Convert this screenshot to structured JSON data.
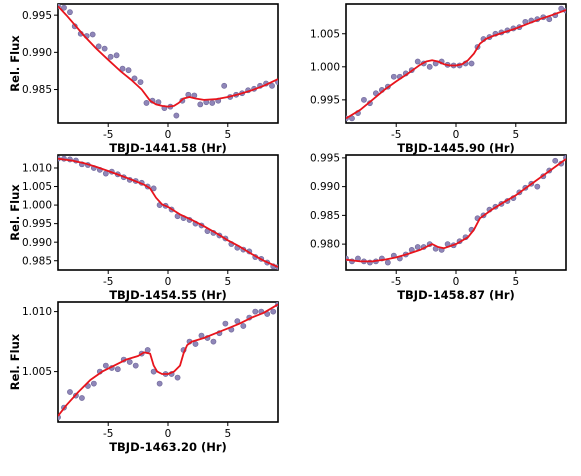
{
  "chart_data": [
    {
      "type": "scatter",
      "xlabel": "TBJD-1441.58 (Hr)",
      "ylabel": "Rel. Flux",
      "xlim": [
        -9.2,
        9.2
      ],
      "ylim": [
        0.9805,
        0.9965
      ],
      "xticks": [
        -5,
        0,
        5
      ],
      "yticks": [
        0.985,
        0.99,
        0.995
      ],
      "ytick_labels": [
        "0.985",
        "0.990",
        "0.995"
      ],
      "series": [
        {
          "kind": "points",
          "color": "#8f86b8",
          "x": [
            -9.2,
            -8.7,
            -8.2,
            -7.8,
            -7.3,
            -6.8,
            -6.3,
            -5.8,
            -5.3,
            -4.8,
            -4.3,
            -3.8,
            -3.3,
            -2.8,
            -2.3,
            -1.8,
            -1.3,
            -0.8,
            -0.3,
            0.2,
            0.7,
            1.2,
            1.7,
            2.2,
            2.7,
            3.2,
            3.7,
            4.2,
            4.7,
            5.2,
            5.7,
            6.2,
            6.7,
            7.2,
            7.7,
            8.2,
            8.7,
            9.2
          ],
          "y": [
            0.9962,
            0.996,
            0.9954,
            0.9935,
            0.9925,
            0.9922,
            0.9924,
            0.9908,
            0.9905,
            0.9894,
            0.9896,
            0.9878,
            0.9876,
            0.9865,
            0.986,
            0.9832,
            0.9835,
            0.9833,
            0.9825,
            0.9827,
            0.9815,
            0.9835,
            0.9843,
            0.9842,
            0.983,
            0.9833,
            0.9832,
            0.9835,
            0.9855,
            0.984,
            0.9843,
            0.9845,
            0.9849,
            0.9851,
            0.9855,
            0.9858,
            0.9855,
            0.986
          ]
        },
        {
          "kind": "line",
          "color": "#e8141c",
          "x": [
            -9.2,
            -8.5,
            -7.8,
            -7.0,
            -6.0,
            -5.0,
            -4.0,
            -3.0,
            -2.2,
            -1.5,
            -1.0,
            -0.5,
            0.0,
            0.5,
            0.9,
            1.3,
            1.8,
            2.3,
            3.0,
            4.0,
            5.0,
            6.0,
            7.0,
            8.0,
            9.2
          ],
          "y": [
            0.9962,
            0.995,
            0.9937,
            0.9922,
            0.9905,
            0.989,
            0.9875,
            0.9862,
            0.985,
            0.9835,
            0.983,
            0.9828,
            0.9827,
            0.9828,
            0.9832,
            0.9838,
            0.984,
            0.9838,
            0.9836,
            0.9837,
            0.984,
            0.9844,
            0.9849,
            0.9855,
            0.9864
          ]
        }
      ]
    },
    {
      "type": "scatter",
      "xlabel": "TBJD-1445.90 (Hr)",
      "ylabel": "",
      "xlim": [
        -9.2,
        9.2
      ],
      "ylim": [
        0.9915,
        1.0095
      ],
      "xticks": [
        -5,
        0,
        5
      ],
      "yticks": [
        0.995,
        1.0,
        1.005
      ],
      "ytick_labels": [
        "0.995",
        "1.000",
        "1.005"
      ],
      "series": [
        {
          "kind": "points",
          "color": "#8f86b8",
          "x": [
            -9.2,
            -8.7,
            -8.2,
            -7.7,
            -7.2,
            -6.7,
            -6.2,
            -5.7,
            -5.2,
            -4.7,
            -4.2,
            -3.7,
            -3.2,
            -2.7,
            -2.2,
            -1.7,
            -1.2,
            -0.7,
            -0.2,
            0.3,
            0.8,
            1.3,
            1.8,
            2.3,
            2.8,
            3.3,
            3.8,
            4.3,
            4.8,
            5.3,
            5.8,
            6.3,
            6.8,
            7.3,
            7.8,
            8.3,
            8.8,
            9.2
          ],
          "y": [
            0.9922,
            0.9922,
            0.993,
            0.995,
            0.9945,
            0.996,
            0.9965,
            0.997,
            0.9985,
            0.9985,
            0.999,
            0.9995,
            1.0008,
            1.0005,
            1.0,
            1.0005,
            1.0008,
            1.0003,
            1.0002,
            1.0002,
            1.0005,
            1.0005,
            1.003,
            1.0042,
            1.0045,
            1.005,
            1.0052,
            1.0055,
            1.0058,
            1.006,
            1.0068,
            1.007,
            1.0072,
            1.0075,
            1.0072,
            1.0078,
            1.0088,
            1.0085
          ]
        },
        {
          "kind": "line",
          "color": "#e8141c",
          "x": [
            -9.2,
            -8.0,
            -7.0,
            -6.0,
            -5.0,
            -4.0,
            -3.0,
            -2.5,
            -2.0,
            -1.5,
            -1.0,
            -0.5,
            0.0,
            0.5,
            1.0,
            1.5,
            2.0,
            2.5,
            3.0,
            4.0,
            5.0,
            6.0,
            7.0,
            8.0,
            9.2
          ],
          "y": [
            0.9922,
            0.9935,
            0.995,
            0.9965,
            0.9978,
            0.999,
            1.0003,
            1.0008,
            1.001,
            1.0008,
            1.0004,
            1.0002,
            1.0002,
            1.0004,
            1.001,
            1.002,
            1.0035,
            1.0042,
            1.0046,
            1.0052,
            1.0058,
            1.0065,
            1.0072,
            1.0078,
            1.0086
          ]
        }
      ]
    },
    {
      "type": "scatter",
      "xlabel": "TBJD-1454.55 (Hr)",
      "ylabel": "Rel. Flux",
      "xlim": [
        -9.2,
        9.2
      ],
      "ylim": [
        0.9825,
        1.0135
      ],
      "xticks": [
        -5,
        0,
        5
      ],
      "yticks": [
        0.985,
        0.99,
        0.995,
        1.0,
        1.005,
        1.01
      ],
      "ytick_labels": [
        "0.985",
        "0.990",
        "0.995",
        "1.000",
        "1.005",
        "1.010"
      ],
      "series": [
        {
          "kind": "points",
          "color": "#8f86b8",
          "x": [
            -9.2,
            -8.7,
            -8.2,
            -7.7,
            -7.2,
            -6.7,
            -6.2,
            -5.7,
            -5.2,
            -4.7,
            -4.2,
            -3.7,
            -3.2,
            -2.7,
            -2.2,
            -1.7,
            -1.2,
            -0.7,
            -0.2,
            0.3,
            0.8,
            1.3,
            1.8,
            2.3,
            2.8,
            3.3,
            3.8,
            4.3,
            4.8,
            5.3,
            5.8,
            6.3,
            6.8,
            7.3,
            7.8,
            8.3,
            8.8,
            9.2
          ],
          "y": [
            1.0125,
            1.0125,
            1.0123,
            1.012,
            1.011,
            1.0108,
            1.01,
            1.0095,
            1.0085,
            1.009,
            1.0083,
            1.0075,
            1.0068,
            1.0065,
            1.006,
            1.005,
            1.0045,
            1.0,
            0.9998,
            0.9988,
            0.997,
            0.9965,
            0.996,
            0.995,
            0.9945,
            0.993,
            0.9925,
            0.9918,
            0.991,
            0.9895,
            0.9885,
            0.988,
            0.9875,
            0.986,
            0.9855,
            0.9845,
            0.9835,
            0.9833
          ]
        },
        {
          "kind": "line",
          "color": "#e8141c",
          "x": [
            -9.2,
            -8.0,
            -7.0,
            -6.0,
            -5.0,
            -4.0,
            -3.0,
            -2.0,
            -1.5,
            -1.0,
            -0.5,
            0.0,
            0.5,
            1.0,
            2.0,
            3.0,
            4.0,
            5.0,
            6.0,
            7.0,
            8.0,
            9.2
          ],
          "y": [
            1.0125,
            1.012,
            1.0113,
            1.0103,
            1.0092,
            1.008,
            1.0068,
            1.0055,
            1.0045,
            1.002,
            1.0002,
            0.9995,
            0.9985,
            0.9975,
            0.996,
            0.9943,
            0.9925,
            0.9905,
            0.9888,
            0.9868,
            0.985,
            0.9833
          ]
        }
      ]
    },
    {
      "type": "scatter",
      "xlabel": "TBJD-1458.87 (Hr)",
      "ylabel": "",
      "xlim": [
        -9.2,
        9.2
      ],
      "ylim": [
        0.9755,
        0.9955
      ],
      "xticks": [
        -5,
        0,
        5
      ],
      "yticks": [
        0.98,
        0.985,
        0.99,
        0.995
      ],
      "ytick_labels": [
        "0.980",
        "0.985",
        "0.990",
        "0.995"
      ],
      "series": [
        {
          "kind": "points",
          "color": "#8f86b8",
          "x": [
            -9.2,
            -8.7,
            -8.2,
            -7.7,
            -7.2,
            -6.7,
            -6.2,
            -5.7,
            -5.2,
            -4.7,
            -4.2,
            -3.7,
            -3.2,
            -2.7,
            -2.2,
            -1.7,
            -1.2,
            -0.7,
            -0.2,
            0.3,
            0.8,
            1.3,
            1.8,
            2.3,
            2.8,
            3.3,
            3.8,
            4.3,
            4.8,
            5.3,
            5.8,
            6.3,
            6.8,
            7.3,
            7.8,
            8.3,
            8.8,
            9.2
          ],
          "y": [
            0.9775,
            0.977,
            0.9775,
            0.977,
            0.9768,
            0.977,
            0.9775,
            0.9768,
            0.978,
            0.9775,
            0.9782,
            0.979,
            0.9795,
            0.9795,
            0.98,
            0.9792,
            0.979,
            0.98,
            0.9798,
            0.9805,
            0.9812,
            0.9825,
            0.9845,
            0.985,
            0.986,
            0.9865,
            0.987,
            0.9875,
            0.988,
            0.989,
            0.9898,
            0.9905,
            0.99,
            0.9918,
            0.9928,
            0.9945,
            0.994,
            0.995
          ]
        },
        {
          "kind": "line",
          "color": "#e8141c",
          "x": [
            -9.2,
            -8.0,
            -7.0,
            -6.0,
            -5.0,
            -4.0,
            -3.0,
            -2.5,
            -2.0,
            -1.5,
            -1.0,
            0.0,
            1.0,
            1.5,
            2.0,
            3.0,
            4.0,
            5.0,
            6.0,
            7.0,
            8.0,
            9.2
          ],
          "y": [
            0.9773,
            0.977,
            0.977,
            0.9773,
            0.9777,
            0.9783,
            0.979,
            0.9795,
            0.98,
            0.9795,
            0.9793,
            0.98,
            0.9812,
            0.9825,
            0.9845,
            0.986,
            0.9873,
            0.9885,
            0.99,
            0.9915,
            0.993,
            0.9948
          ]
        }
      ]
    },
    {
      "type": "scatter",
      "xlabel": "TBJD-1463.20 (Hr)",
      "ylabel": "Rel. Flux",
      "xlim": [
        -9.2,
        9.2
      ],
      "ylim": [
        1.0008,
        1.0108
      ],
      "xticks": [
        -5,
        0,
        5
      ],
      "yticks": [
        1.005,
        1.01
      ],
      "ytick_labels": [
        "1.005",
        "1.010"
      ],
      "series": [
        {
          "kind": "points",
          "color": "#8f86b8",
          "x": [
            -9.2,
            -8.7,
            -8.2,
            -7.7,
            -7.2,
            -6.7,
            -6.2,
            -5.7,
            -5.2,
            -4.7,
            -4.2,
            -3.7,
            -3.2,
            -2.7,
            -2.2,
            -1.7,
            -1.2,
            -0.7,
            -0.2,
            0.3,
            0.8,
            1.3,
            1.8,
            2.3,
            2.8,
            3.3,
            3.8,
            4.3,
            4.8,
            5.3,
            5.8,
            6.3,
            6.8,
            7.3,
            7.8,
            8.3,
            8.8,
            9.2
          ],
          "y": [
            1.0012,
            1.002,
            1.0033,
            1.003,
            1.0028,
            1.0038,
            1.004,
            1.005,
            1.0055,
            1.0053,
            1.0052,
            1.006,
            1.0058,
            1.0055,
            1.0065,
            1.0068,
            1.005,
            1.004,
            1.0048,
            1.0048,
            1.0045,
            1.0068,
            1.0075,
            1.0073,
            1.008,
            1.0078,
            1.0075,
            1.0082,
            1.009,
            1.0085,
            1.0092,
            1.0088,
            1.0095,
            1.01,
            1.01,
            1.0098,
            1.01,
            1.0106
          ]
        },
        {
          "kind": "line",
          "color": "#e8141c",
          "x": [
            -9.2,
            -8.5,
            -7.5,
            -6.5,
            -5.5,
            -4.5,
            -3.5,
            -2.5,
            -2.0,
            -1.5,
            -1.2,
            -0.9,
            -0.5,
            0.0,
            0.5,
            1.0,
            1.3,
            1.6,
            2.0,
            3.0,
            4.0,
            5.0,
            6.0,
            7.0,
            8.0,
            9.2
          ],
          "y": [
            1.0013,
            1.0022,
            1.0033,
            1.0043,
            1.005,
            1.0055,
            1.006,
            1.0063,
            1.0066,
            1.0065,
            1.0055,
            1.005,
            1.0048,
            1.0048,
            1.005,
            1.0055,
            1.0065,
            1.0072,
            1.0075,
            1.0078,
            1.0082,
            1.0086,
            1.009,
            1.0095,
            1.0099,
            1.0106
          ]
        }
      ]
    }
  ]
}
